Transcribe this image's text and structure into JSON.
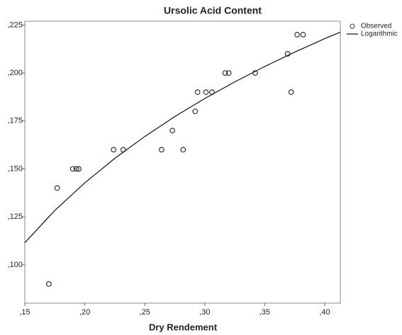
{
  "chart_data": {
    "type": "scatter",
    "title": "Ursolic Acid Content",
    "x_label": "Dry Rendement",
    "xlim": [
      0.15,
      0.413
    ],
    "ylim": [
      0.08,
      0.227
    ],
    "xticks": [
      {
        "value": 0.15,
        "label": ",15"
      },
      {
        "value": 0.2,
        "label": ",20"
      },
      {
        "value": 0.25,
        "label": ",25"
      },
      {
        "value": 0.3,
        "label": ",30"
      },
      {
        "value": 0.35,
        "label": ",35"
      },
      {
        "value": 0.4,
        "label": ",40"
      }
    ],
    "yticks": [
      {
        "value": 0.1,
        "label": ",100"
      },
      {
        "value": 0.125,
        "label": ",125"
      },
      {
        "value": 0.15,
        "label": ",150"
      },
      {
        "value": 0.175,
        "label": ",175"
      },
      {
        "value": 0.2,
        "label": ",200"
      },
      {
        "value": 0.225,
        "label": ",225"
      }
    ],
    "legend": "right",
    "series": [
      {
        "name": "Observed",
        "type": "scatter",
        "color": "#333333",
        "x": [
          0.17,
          0.177,
          0.19,
          0.193,
          0.195,
          0.224,
          0.232,
          0.264,
          0.273,
          0.282,
          0.292,
          0.294,
          0.301,
          0.306,
          0.317,
          0.32,
          0.342,
          0.369,
          0.372,
          0.377,
          0.382
        ],
        "values": [
          0.09,
          0.14,
          0.15,
          0.15,
          0.15,
          0.16,
          0.16,
          0.16,
          0.17,
          0.16,
          0.18,
          0.19,
          0.19,
          0.19,
          0.2,
          0.2,
          0.2,
          0.21,
          0.19,
          0.22,
          0.22
        ]
      },
      {
        "name": "Logarithmic",
        "type": "line",
        "color": "#111111",
        "x": [
          0.15,
          0.175,
          0.2,
          0.225,
          0.25,
          0.275,
          0.3,
          0.325,
          0.35,
          0.375,
          0.4,
          0.413
        ],
        "values": [
          0.1115,
          0.1283,
          0.1427,
          0.1555,
          0.1669,
          0.1773,
          0.1867,
          0.1954,
          0.2034,
          0.2109,
          0.2179,
          0.2213
        ]
      }
    ]
  }
}
